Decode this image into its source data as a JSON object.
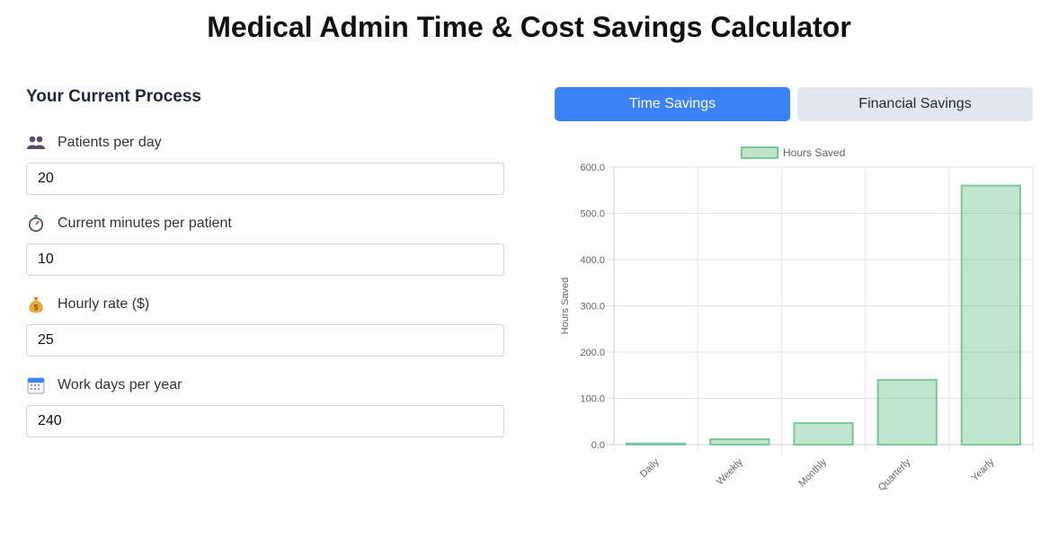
{
  "page": {
    "title": "Medical Admin Time & Cost Savings Calculator"
  },
  "form": {
    "section_title": "Your Current Process",
    "fields": [
      {
        "icon": "two-people-icon",
        "label": "Patients per day",
        "value": "20"
      },
      {
        "icon": "stopwatch-icon",
        "label": "Current minutes per patient",
        "value": "10"
      },
      {
        "icon": "money-bag-icon",
        "label": "Hourly rate ($)",
        "value": "25"
      },
      {
        "icon": "calendar-icon",
        "label": "Work days per year",
        "value": "240"
      }
    ]
  },
  "tabs": {
    "time_label": "Time Savings",
    "financial_label": "Financial Savings",
    "active": "time"
  },
  "colors": {
    "tab_active": "#3b82f6",
    "tab_inactive": "#e2e8f0",
    "bar_fill": "rgba(75, 180, 110, 0.35)",
    "bar_stroke": "#7cc79a"
  },
  "chart_data": {
    "type": "bar",
    "categories": [
      "Daily",
      "Weekly",
      "Monthly",
      "Quarterly",
      "Yearly"
    ],
    "series": [
      {
        "name": "Hours Saved",
        "values": [
          2.3,
          11.7,
          46.7,
          140.0,
          560.0
        ]
      }
    ],
    "ylabel": "Hours Saved",
    "xlabel": "",
    "ylim": [
      0,
      600
    ],
    "yticks": [
      "0.0",
      "100.0",
      "200.0",
      "300.0",
      "400.0",
      "500.0",
      "600.0"
    ],
    "legend": "top",
    "grid": true
  }
}
